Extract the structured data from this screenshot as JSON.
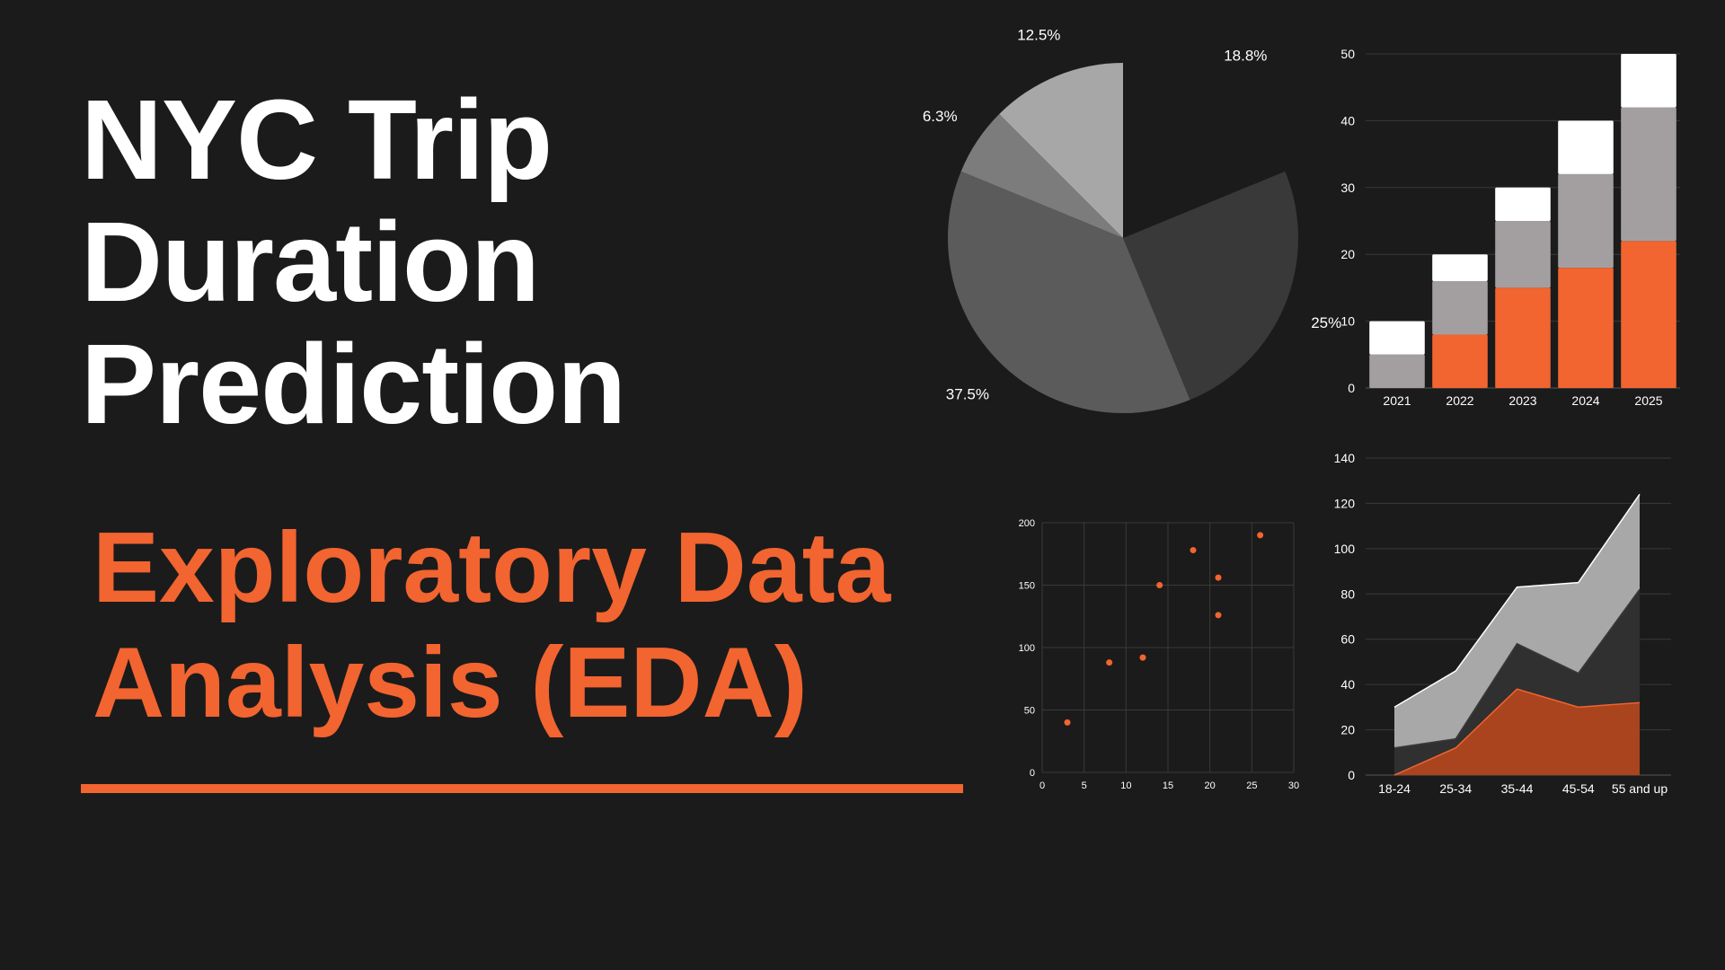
{
  "slide": {
    "title_lines": [
      "NYC Trip",
      "Duration",
      "Prediction"
    ],
    "subtitle_lines": [
      "Exploratory Data",
      "Analysis (EDA)"
    ],
    "accent_color": "#f26430",
    "title_color": "#ffffff",
    "background_color": "#1b1b1b"
  },
  "chart_data": [
    {
      "type": "pie",
      "slices": [
        {
          "label": "25%",
          "value": 25,
          "color": "#393939"
        },
        {
          "label": "37.5%",
          "value": 37.5,
          "color": "#5b5b5b"
        },
        {
          "label": "6.3%",
          "value": 6.3,
          "color": "#7c7c7c"
        },
        {
          "label": "12.5%",
          "value": 12.5,
          "color": "#a7a7a7"
        },
        {
          "label": "18.8%",
          "value": 18.8,
          "color": "#1b1b1b"
        }
      ]
    },
    {
      "type": "bar",
      "stacked": true,
      "categories": [
        "2021",
        "2022",
        "2023",
        "2024",
        "2025"
      ],
      "series": [
        {
          "values": [
            0,
            8,
            15,
            18,
            22
          ],
          "color": "#f26430"
        },
        {
          "values": [
            5,
            8,
            10,
            14,
            20
          ],
          "color": "#a39fa0"
        },
        {
          "values": [
            5,
            4,
            5,
            8,
            8
          ],
          "color": "#ffffff"
        }
      ],
      "ylim": [
        0,
        50
      ],
      "yticks": [
        0,
        10,
        20,
        30,
        40,
        50
      ],
      "grid": true
    },
    {
      "type": "scatter",
      "points": [
        [
          3,
          40
        ],
        [
          8,
          88
        ],
        [
          12,
          92
        ],
        [
          14,
          150
        ],
        [
          18,
          178
        ],
        [
          21,
          156
        ],
        [
          21,
          126
        ],
        [
          26,
          190
        ]
      ],
      "xlim": [
        0,
        30
      ],
      "ylim": [
        0,
        200
      ],
      "xticks": [
        0,
        5,
        10,
        15,
        20,
        25,
        30
      ],
      "yticks": [
        0,
        50,
        100,
        150,
        200
      ],
      "color": "#f26430",
      "grid": true
    },
    {
      "type": "area",
      "categories": [
        "18-24",
        "25-34",
        "35-44",
        "45-54",
        "55 and up"
      ],
      "series": [
        {
          "values": [
            30,
            46,
            83,
            85,
            124
          ],
          "color": "#a8a8a8"
        },
        {
          "values": [
            12,
            16,
            58,
            45,
            82
          ],
          "color": "#303030"
        },
        {
          "values": [
            0,
            12,
            38,
            30,
            32
          ],
          "color": "#a9441f"
        }
      ],
      "ylim": [
        0,
        140
      ],
      "yticks": [
        0,
        20,
        40,
        60,
        80,
        100,
        120,
        140
      ],
      "grid": true
    }
  ]
}
